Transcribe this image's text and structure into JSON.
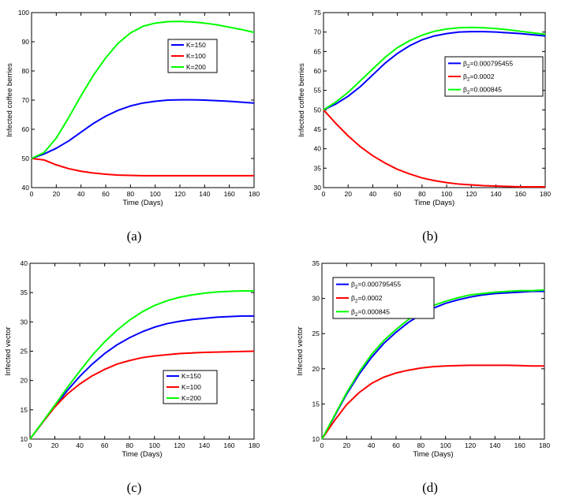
{
  "chart_data": [
    {
      "panel": "a",
      "caption": "(a)",
      "type": "line",
      "xlabel": "Time (Days)",
      "ylabel": "Infected coffee berries",
      "xlim": [
        0,
        180
      ],
      "ylim": [
        40,
        100
      ],
      "xticks": [
        "0",
        "20",
        "40",
        "60",
        "80",
        "100",
        "120",
        "140",
        "160",
        "180"
      ],
      "yticks": [
        "40",
        "50",
        "60",
        "70",
        "80",
        "90",
        "100"
      ],
      "legend_position": "upper-right",
      "series": [
        {
          "name": "K=150",
          "sub": "",
          "rest": "",
          "color": "#0000ff",
          "x": [
            0,
            10,
            20,
            30,
            40,
            50,
            60,
            70,
            80,
            90,
            100,
            110,
            120,
            130,
            140,
            150,
            160,
            170,
            180
          ],
          "y": [
            50,
            51.5,
            53.5,
            56,
            59,
            62,
            64.5,
            66.5,
            68,
            69,
            69.6,
            70,
            70.1,
            70.1,
            70,
            69.8,
            69.6,
            69.3,
            69
          ]
        },
        {
          "name": "K=100",
          "sub": "",
          "rest": "",
          "color": "#ff0000",
          "x": [
            0,
            10,
            20,
            30,
            40,
            50,
            60,
            70,
            80,
            90,
            100,
            110,
            120,
            130,
            140,
            150,
            160,
            170,
            180
          ],
          "y": [
            50,
            49.5,
            47.8,
            46.5,
            45.6,
            45,
            44.6,
            44.3,
            44.2,
            44.1,
            44.1,
            44.1,
            44.1,
            44.1,
            44.1,
            44.1,
            44.1,
            44.1,
            44.1
          ]
        },
        {
          "name": "K=200",
          "sub": "",
          "rest": "",
          "color": "#00ff00",
          "x": [
            0,
            10,
            20,
            30,
            40,
            50,
            60,
            70,
            80,
            90,
            100,
            110,
            120,
            130,
            140,
            150,
            160,
            170,
            180
          ],
          "y": [
            50,
            52,
            57,
            64,
            71.5,
            78.5,
            84.5,
            89.5,
            93,
            95.3,
            96.4,
            96.9,
            97,
            96.8,
            96.4,
            95.8,
            95,
            94.2,
            93.2
          ]
        }
      ]
    },
    {
      "panel": "b",
      "caption": "(b)",
      "type": "line",
      "xlabel": "Time (Days)",
      "ylabel": "Infected coffee berries",
      "xlim": [
        0,
        180
      ],
      "ylim": [
        30,
        75
      ],
      "xticks": [
        "0",
        "20",
        "40",
        "60",
        "80",
        "100",
        "120",
        "140",
        "160",
        "180"
      ],
      "yticks": [
        "30",
        "35",
        "40",
        "45",
        "50",
        "55",
        "60",
        "65",
        "70",
        "75"
      ],
      "legend_position": "middle-right",
      "series": [
        {
          "name": "β",
          "sub": "2",
          "rest": "=0.000795455",
          "color": "#0000ff",
          "x": [
            0,
            10,
            20,
            30,
            40,
            50,
            60,
            70,
            80,
            90,
            100,
            110,
            120,
            130,
            140,
            150,
            160,
            170,
            180
          ],
          "y": [
            50,
            51.5,
            53.5,
            56,
            59,
            62,
            64.5,
            66.5,
            68,
            69,
            69.6,
            70,
            70.1,
            70.1,
            70,
            69.8,
            69.6,
            69.3,
            69
          ]
        },
        {
          "name": "β",
          "sub": "2",
          "rest": "=0.0002",
          "color": "#ff0000",
          "x": [
            0,
            10,
            20,
            30,
            40,
            50,
            60,
            70,
            80,
            90,
            100,
            110,
            120,
            130,
            140,
            150,
            160,
            170,
            180
          ],
          "y": [
            50,
            46.5,
            43.3,
            40.5,
            38.2,
            36.3,
            34.7,
            33.5,
            32.5,
            31.8,
            31.3,
            30.9,
            30.7,
            30.5,
            30.4,
            30.3,
            30.2,
            30.2,
            30.2
          ]
        },
        {
          "name": "β",
          "sub": "2",
          "rest": "=0.000845",
          "color": "#00ff00",
          "x": [
            0,
            10,
            20,
            30,
            40,
            50,
            60,
            70,
            80,
            90,
            100,
            110,
            120,
            130,
            140,
            150,
            160,
            170,
            180
          ],
          "y": [
            50,
            52,
            54.5,
            57.5,
            60.5,
            63.5,
            66,
            67.8,
            69.2,
            70.2,
            70.8,
            71.1,
            71.2,
            71.1,
            70.9,
            70.6,
            70.2,
            69.8,
            69.4
          ]
        }
      ]
    },
    {
      "panel": "c",
      "caption": "(c)",
      "type": "line",
      "xlabel": "Time (Days)",
      "ylabel": "Infected vector",
      "xlim": [
        0,
        180
      ],
      "ylim": [
        10,
        40
      ],
      "xticks": [
        "0",
        "20",
        "40",
        "60",
        "80",
        "100",
        "120",
        "140",
        "160",
        "180"
      ],
      "yticks": [
        "10",
        "15",
        "20",
        "25",
        "30",
        "35",
        "40"
      ],
      "legend_position": "lower-right",
      "series": [
        {
          "name": "K=150",
          "sub": "",
          "rest": "",
          "color": "#0000ff",
          "x": [
            0,
            10,
            20,
            30,
            40,
            50,
            60,
            70,
            80,
            90,
            100,
            110,
            120,
            130,
            140,
            150,
            160,
            170,
            180
          ],
          "y": [
            10,
            12.8,
            15.6,
            18.3,
            20.7,
            22.8,
            24.6,
            26.1,
            27.3,
            28.3,
            29.1,
            29.7,
            30.1,
            30.4,
            30.6,
            30.8,
            30.9,
            31,
            31
          ]
        },
        {
          "name": "K=100",
          "sub": "",
          "rest": "",
          "color": "#ff0000",
          "x": [
            0,
            10,
            20,
            30,
            40,
            50,
            60,
            70,
            80,
            90,
            100,
            110,
            120,
            130,
            140,
            150,
            160,
            170,
            180
          ],
          "y": [
            10,
            12.8,
            15.5,
            17.7,
            19.4,
            20.8,
            21.9,
            22.8,
            23.4,
            23.9,
            24.2,
            24.4,
            24.6,
            24.7,
            24.8,
            24.85,
            24.9,
            24.95,
            25
          ]
        },
        {
          "name": "K=200",
          "sub": "",
          "rest": "",
          "color": "#00ff00",
          "x": [
            0,
            10,
            20,
            30,
            40,
            50,
            60,
            70,
            80,
            90,
            100,
            110,
            120,
            130,
            140,
            150,
            160,
            170,
            180
          ],
          "y": [
            10,
            12.9,
            15.8,
            18.8,
            21.6,
            24.3,
            26.6,
            28.6,
            30.3,
            31.7,
            32.8,
            33.6,
            34.2,
            34.6,
            34.9,
            35.1,
            35.2,
            35.3,
            35.3
          ]
        }
      ]
    },
    {
      "panel": "d",
      "caption": "(d)",
      "type": "line",
      "xlabel": "Time (Days)",
      "ylabel": "Infected vector",
      "xlim": [
        0,
        180
      ],
      "ylim": [
        10,
        35
      ],
      "xticks": [
        "0",
        "20",
        "40",
        "60",
        "80",
        "100",
        "120",
        "140",
        "160",
        "180"
      ],
      "yticks": [
        "10",
        "15",
        "20",
        "25",
        "30",
        "35"
      ],
      "legend_position": "upper-left",
      "series": [
        {
          "name": "β",
          "sub": "2",
          "rest": "=0.000795455",
          "color": "#0000ff",
          "x": [
            0,
            10,
            20,
            30,
            40,
            50,
            60,
            70,
            80,
            90,
            100,
            110,
            120,
            130,
            140,
            150,
            160,
            170,
            180
          ],
          "y": [
            10,
            13.2,
            16.4,
            19.2,
            21.6,
            23.6,
            25.2,
            26.6,
            27.7,
            28.6,
            29.3,
            29.8,
            30.2,
            30.5,
            30.7,
            30.8,
            30.9,
            31,
            31
          ]
        },
        {
          "name": "β",
          "sub": "2",
          "rest": "=0.0002",
          "color": "#ff0000",
          "x": [
            0,
            10,
            20,
            30,
            40,
            50,
            60,
            70,
            80,
            90,
            100,
            110,
            120,
            130,
            140,
            150,
            160,
            170,
            180
          ],
          "y": [
            10,
            12.6,
            14.9,
            16.6,
            17.9,
            18.8,
            19.4,
            19.8,
            20.1,
            20.3,
            20.4,
            20.45,
            20.5,
            20.5,
            20.5,
            20.5,
            20.45,
            20.4,
            20.4
          ]
        },
        {
          "name": "β",
          "sub": "2",
          "rest": "=0.000845",
          "color": "#00ff00",
          "x": [
            0,
            10,
            20,
            30,
            40,
            50,
            60,
            70,
            80,
            90,
            100,
            110,
            120,
            130,
            140,
            150,
            160,
            170,
            180
          ],
          "y": [
            10,
            13.3,
            16.6,
            19.5,
            22,
            24,
            25.6,
            27,
            28.1,
            29,
            29.6,
            30.1,
            30.5,
            30.7,
            30.9,
            31,
            31.1,
            31.1,
            31.2
          ]
        }
      ]
    }
  ]
}
